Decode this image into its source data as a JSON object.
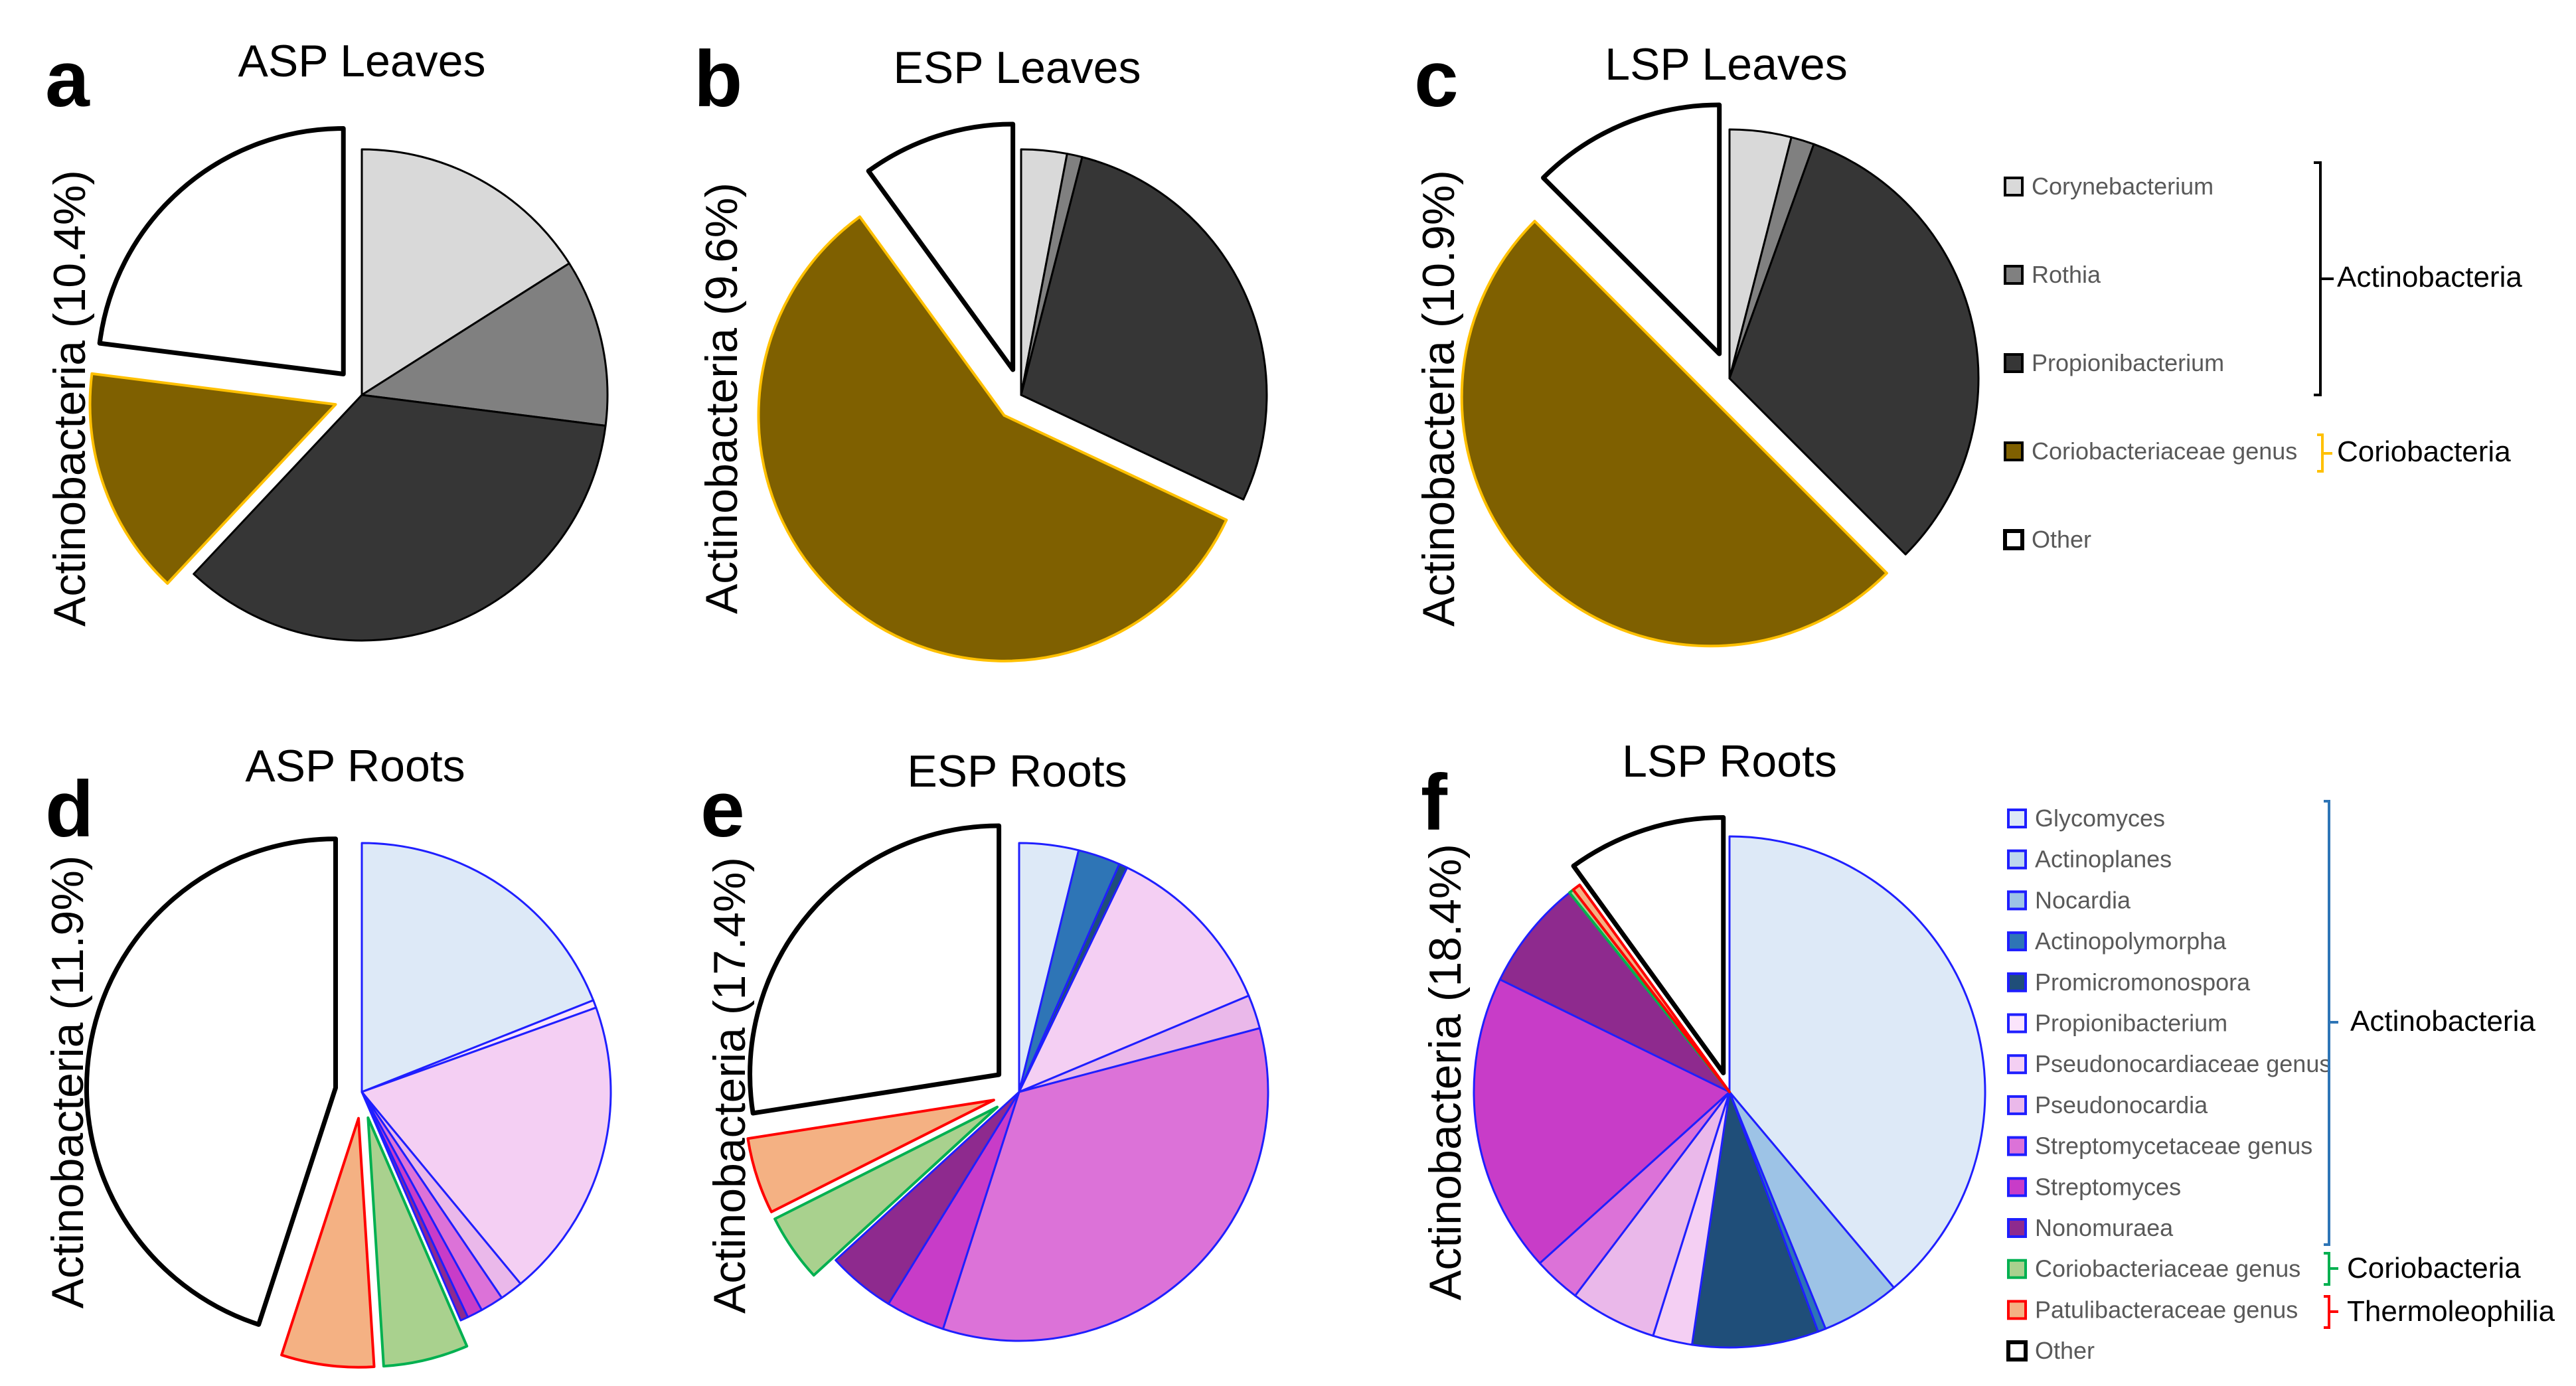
{
  "chart_data": [
    {
      "panel": "a",
      "type": "pie",
      "title": "ASP Leaves",
      "ylabel": "Actinobacteria (10.4%)",
      "categories": [
        "Corynebacterium",
        "Rothia",
        "Propionibacterium",
        "Coriobacteriaceae genus",
        "Other"
      ],
      "values": [
        16,
        11,
        35,
        15,
        23
      ],
      "exploded": [
        "Coriobacteriaceae genus",
        "Other"
      ]
    },
    {
      "panel": "b",
      "type": "pie",
      "title": "ESP Leaves",
      "ylabel": "Actinobacteria (9.6%)",
      "categories": [
        "Corynebacterium",
        "Rothia",
        "Propionibacterium",
        "Coriobacteriaceae genus",
        "Other"
      ],
      "values": [
        3,
        1,
        28,
        58,
        10
      ],
      "exploded": [
        "Coriobacteriaceae genus",
        "Other"
      ]
    },
    {
      "panel": "c",
      "type": "pie",
      "title": "LSP Leaves",
      "ylabel": "Actinobacteria (10.9%)",
      "categories": [
        "Corynebacterium",
        "Rothia",
        "Propionibacterium",
        "Coriobacteriaceae genus",
        "Other"
      ],
      "values": [
        4,
        1.5,
        32,
        50,
        12.5
      ],
      "exploded": [
        "Coriobacteriaceae genus",
        "Other"
      ]
    },
    {
      "panel": "d",
      "type": "pie",
      "title": "ASP Roots",
      "ylabel": "Actinobacteria (11.9%)",
      "categories": [
        "Glycomyces",
        "Actinoplanes",
        "Nocardia",
        "Actinopolymorpha",
        "Promicromonospora",
        "Propionibacterium",
        "Pseudonocardiaceae genus",
        "Pseudonocardia",
        "Streptomycetaceae genus",
        "Streptomyces",
        "Nonomuraea",
        "Coriobacteriaceae genus",
        "Patulibacteraceae genus",
        "Other"
      ],
      "values": [
        19,
        0,
        0,
        0,
        0,
        0.5,
        19.5,
        1.5,
        1.5,
        1,
        0.5,
        5.5,
        6,
        45
      ],
      "exploded": [
        "Coriobacteriaceae genus",
        "Patulibacteraceae genus",
        "Other"
      ]
    },
    {
      "panel": "e",
      "type": "pie",
      "title": "ESP Roots",
      "ylabel": "Actinobacteria (17.4%)",
      "categories": [
        "Glycomyces",
        "Actinoplanes",
        "Nocardia",
        "Actinopolymorpha",
        "Promicromonospora",
        "Propionibacterium",
        "Pseudonocardiaceae genus",
        "Pseudonocardia",
        "Streptomycetaceae genus",
        "Streptomyces",
        "Nonomuraea",
        "Coriobacteriaceae genus",
        "Patulibacteraceae genus",
        "Other"
      ],
      "values": [
        3.5,
        0,
        0,
        2.5,
        0.5,
        0,
        10.5,
        2,
        31,
        3.5,
        4,
        4,
        4.5,
        25
      ],
      "exploded": [
        "Coriobacteriaceae genus",
        "Patulibacteraceae genus",
        "Other"
      ]
    },
    {
      "panel": "f",
      "type": "pie",
      "title": "LSP Roots",
      "ylabel": "Actinobacteria (18.4%)",
      "categories": [
        "Glycomyces",
        "Actinoplanes",
        "Nocardia",
        "Actinopolymorpha",
        "Promicromonospora",
        "Propionibacterium",
        "Pseudonocardiaceae genus",
        "Pseudonocardia",
        "Streptomycetaceae genus",
        "Streptomyces",
        "Nonomuraea",
        "Coriobacteriaceae genus",
        "Patulibacteraceae genus",
        "Other"
      ],
      "values": [
        39,
        0,
        5,
        0.5,
        8,
        0,
        2.5,
        5.5,
        3,
        19,
        7,
        0.3,
        0.5,
        10
      ],
      "exploded": [
        "Other"
      ]
    }
  ],
  "legend_leaves": {
    "items": [
      {
        "label": "Corynebacterium",
        "color": "#d9d9d9",
        "stroke": "#000000"
      },
      {
        "label": "Rothia",
        "color": "#808080",
        "stroke": "#000000"
      },
      {
        "label": "Propionibacterium",
        "color": "#363636",
        "stroke": "#000000"
      },
      {
        "label": "Coriobacteriaceae genus",
        "color": "#7f6000",
        "stroke": "#000000"
      },
      {
        "label": "Other",
        "color": "#ffffff",
        "stroke": "#000000"
      }
    ],
    "groups": [
      {
        "label": "Actinobacteria",
        "color": "#000000"
      },
      {
        "label": "Coriobacteria",
        "color": "#ffc000"
      }
    ]
  },
  "legend_roots": {
    "items": [
      {
        "label": "Glycomyces",
        "color": "#dde9f7",
        "stroke": "#1f1fff"
      },
      {
        "label": "Actinoplanes",
        "color": "#bdd7ee",
        "stroke": "#1f1fff"
      },
      {
        "label": "Nocardia",
        "color": "#9dc3e6",
        "stroke": "#1f1fff"
      },
      {
        "label": "Actinopolymorpha",
        "color": "#2e75b6",
        "stroke": "#1f1fff"
      },
      {
        "label": "Promicromonospora",
        "color": "#1f4e79",
        "stroke": "#1f1fff"
      },
      {
        "label": "Propionibacterium",
        "color": "#fbe4fb",
        "stroke": "#1f1fff"
      },
      {
        "label": "Pseudonocardiaceae genus",
        "color": "#f4cff3",
        "stroke": "#1f1fff"
      },
      {
        "label": "Pseudonocardia",
        "color": "#eab8ea",
        "stroke": "#1f1fff"
      },
      {
        "label": "Streptomycetaceae genus",
        "color": "#dc72d8",
        "stroke": "#1f1fff"
      },
      {
        "label": "Streptomyces",
        "color": "#c83cc8",
        "stroke": "#1f1fff"
      },
      {
        "label": "Nonomuraea",
        "color": "#8e2a8e",
        "stroke": "#1f1fff"
      },
      {
        "label": "Coriobacteriaceae genus",
        "color": "#a9d18e",
        "stroke": "#00b050"
      },
      {
        "label": "Patulibacteraceae genus",
        "color": "#f4b183",
        "stroke": "#ff0000"
      },
      {
        "label": "Other",
        "color": "#ffffff",
        "stroke": "#000000"
      }
    ],
    "groups": [
      {
        "label": "Actinobacteria",
        "color": "#2e75b6"
      },
      {
        "label": "Coriobacteria",
        "color": "#00b050"
      },
      {
        "label": "Thermoleophilia",
        "color": "#ff0000"
      }
    ]
  }
}
